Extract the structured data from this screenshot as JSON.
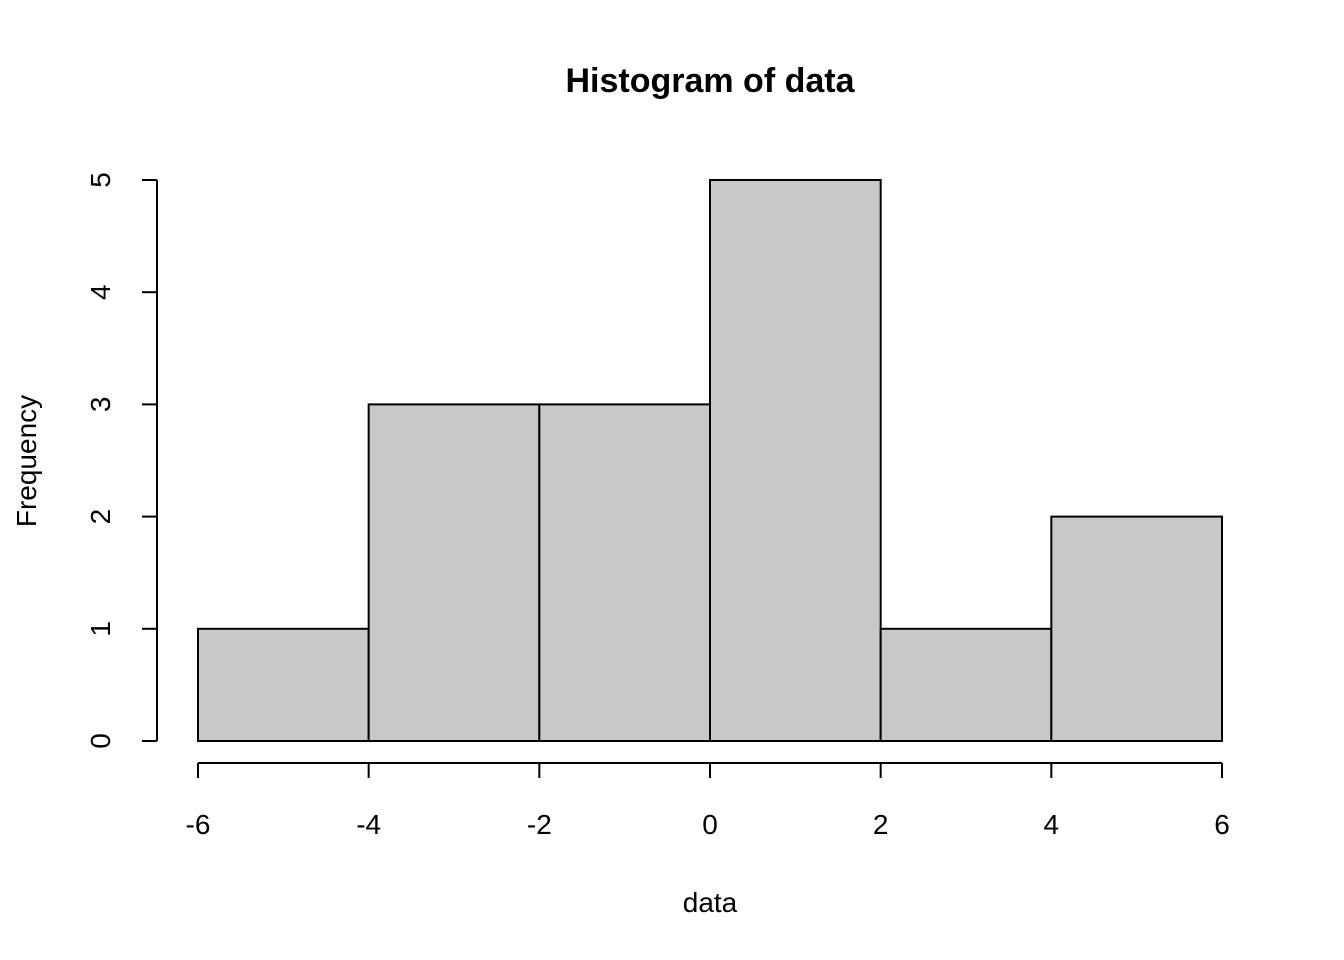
{
  "chart_data": {
    "type": "histogram",
    "title": "Histogram of data",
    "xlabel": "data",
    "ylabel": "Frequency",
    "bins": [
      -6,
      -4,
      -2,
      0,
      2,
      4,
      6
    ],
    "values": [
      1,
      3,
      3,
      5,
      1,
      2
    ],
    "color": "#c8c8c8",
    "xlim": [
      -6,
      6
    ],
    "ylim": [
      0,
      5
    ],
    "xticks": [
      -6,
      -4,
      -2,
      0,
      2,
      4,
      6
    ],
    "yticks": [
      0,
      1,
      2,
      3,
      4,
      5
    ]
  }
}
